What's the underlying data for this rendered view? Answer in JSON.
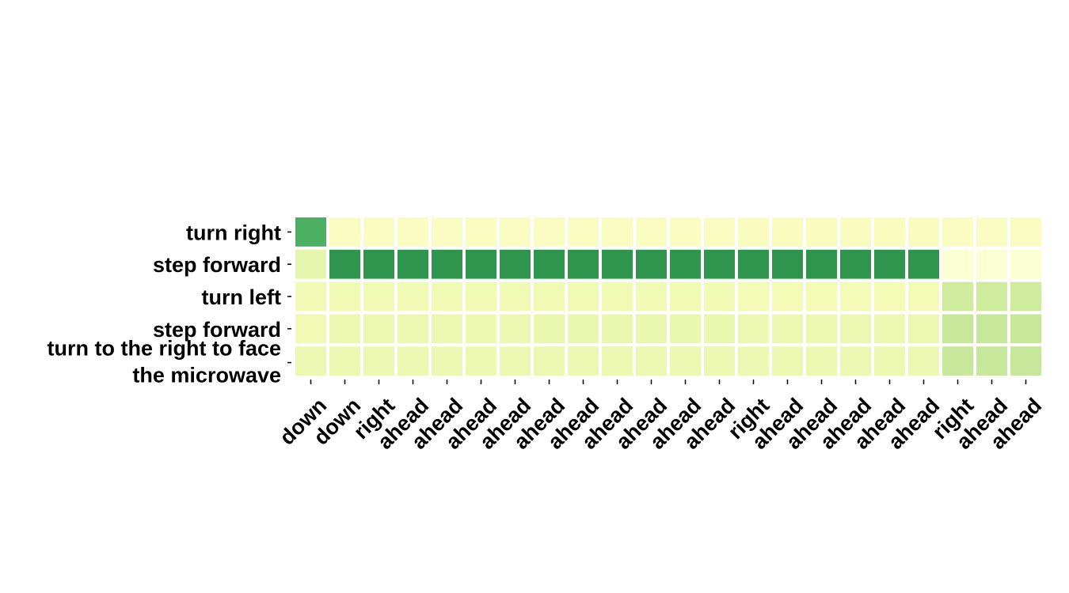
{
  "chart_data": {
    "type": "heatmap",
    "title": "",
    "xlabel": "",
    "ylabel": "",
    "rows": [
      "turn right",
      "step forward",
      "turn left",
      "step forward",
      "turn to the right to face the microwave"
    ],
    "row_label_lines": [
      [
        "turn right"
      ],
      [
        "step forward"
      ],
      [
        "turn left"
      ],
      [
        "step forward"
      ],
      [
        "turn to the right to face",
        "the microwave"
      ]
    ],
    "columns": [
      "down",
      "down",
      "right",
      "ahead",
      "ahead",
      "ahead",
      "ahead",
      "ahead",
      "ahead",
      "ahead",
      "ahead",
      "ahead",
      "ahead",
      "right",
      "ahead",
      "ahead",
      "ahead",
      "ahead",
      "ahead",
      "right",
      "ahead",
      "ahead"
    ],
    "values": [
      [
        0.6,
        0.1,
        0.1,
        0.1,
        0.1,
        0.1,
        0.1,
        0.1,
        0.1,
        0.1,
        0.1,
        0.1,
        0.1,
        0.11,
        0.11,
        0.11,
        0.11,
        0.11,
        0.11,
        0.1,
        0.1,
        0.1
      ],
      [
        0.2,
        0.7,
        0.7,
        0.7,
        0.7,
        0.7,
        0.7,
        0.7,
        0.7,
        0.7,
        0.7,
        0.7,
        0.7,
        0.7,
        0.7,
        0.7,
        0.7,
        0.7,
        0.7,
        0.05,
        0.05,
        0.05
      ],
      [
        0.15,
        0.15,
        0.15,
        0.15,
        0.15,
        0.15,
        0.15,
        0.15,
        0.15,
        0.15,
        0.15,
        0.15,
        0.15,
        0.14,
        0.14,
        0.14,
        0.14,
        0.14,
        0.14,
        0.28,
        0.28,
        0.28
      ],
      [
        0.15,
        0.17,
        0.17,
        0.17,
        0.17,
        0.17,
        0.17,
        0.18,
        0.18,
        0.18,
        0.18,
        0.18,
        0.18,
        0.17,
        0.17,
        0.17,
        0.17,
        0.17,
        0.17,
        0.3,
        0.3,
        0.3
      ],
      [
        0.17,
        0.17,
        0.17,
        0.17,
        0.17,
        0.17,
        0.17,
        0.17,
        0.17,
        0.17,
        0.17,
        0.17,
        0.17,
        0.17,
        0.17,
        0.17,
        0.17,
        0.17,
        0.17,
        0.3,
        0.3,
        0.3
      ]
    ],
    "colormap": "YlGn",
    "vmin": 0,
    "vmax": 1,
    "grid": false,
    "legend": "none"
  }
}
